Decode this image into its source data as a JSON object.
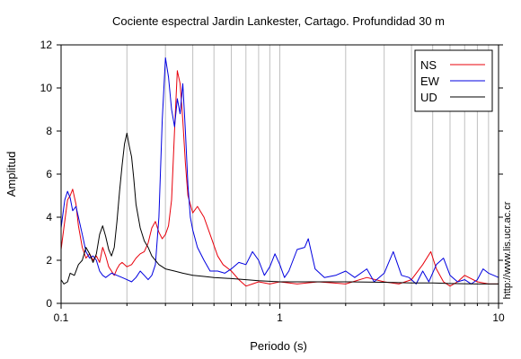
{
  "chart_data": {
    "type": "line",
    "title": "Cociente espectral Jardin Lankester, Cartago. Profundidad 30 m",
    "xlabel": "Periodo (s)",
    "ylabel": "Amplitud",
    "xscale": "log",
    "xlim": [
      0.1,
      10
    ],
    "ylim": [
      0,
      12
    ],
    "xticks": [
      {
        "value": 0.1,
        "label": "0.1"
      },
      {
        "value": 1,
        "label": "1"
      },
      {
        "value": 10,
        "label": "10"
      }
    ],
    "yticks": [
      0,
      2,
      4,
      6,
      8,
      10,
      12
    ],
    "grid": "vertical log-decade lines",
    "legend_position": "top-right",
    "series": [
      {
        "name": "NS",
        "color": "#e8000b",
        "points": [
          [
            0.1,
            2.5
          ],
          [
            0.103,
            3.5
          ],
          [
            0.107,
            4.8
          ],
          [
            0.11,
            5.0
          ],
          [
            0.113,
            5.3
          ],
          [
            0.117,
            4.6
          ],
          [
            0.12,
            3.6
          ],
          [
            0.125,
            2.6
          ],
          [
            0.13,
            2.1
          ],
          [
            0.135,
            2.3
          ],
          [
            0.14,
            2.0
          ],
          [
            0.145,
            2.2
          ],
          [
            0.15,
            1.9
          ],
          [
            0.155,
            2.6
          ],
          [
            0.16,
            2.2
          ],
          [
            0.165,
            1.7
          ],
          [
            0.17,
            1.5
          ],
          [
            0.175,
            1.3
          ],
          [
            0.18,
            1.6
          ],
          [
            0.185,
            1.8
          ],
          [
            0.19,
            1.9
          ],
          [
            0.2,
            1.7
          ],
          [
            0.21,
            1.8
          ],
          [
            0.22,
            2.1
          ],
          [
            0.23,
            2.3
          ],
          [
            0.24,
            2.4
          ],
          [
            0.25,
            2.8
          ],
          [
            0.26,
            3.5
          ],
          [
            0.27,
            3.8
          ],
          [
            0.28,
            3.3
          ],
          [
            0.29,
            3.0
          ],
          [
            0.3,
            3.2
          ],
          [
            0.31,
            3.6
          ],
          [
            0.32,
            4.8
          ],
          [
            0.33,
            8.0
          ],
          [
            0.34,
            10.8
          ],
          [
            0.35,
            10.2
          ],
          [
            0.36,
            8.5
          ],
          [
            0.37,
            6.5
          ],
          [
            0.38,
            5.0
          ],
          [
            0.4,
            4.2
          ],
          [
            0.42,
            4.5
          ],
          [
            0.45,
            4.0
          ],
          [
            0.48,
            3.2
          ],
          [
            0.52,
            2.2
          ],
          [
            0.55,
            1.8
          ],
          [
            0.6,
            1.5
          ],
          [
            0.65,
            1.1
          ],
          [
            0.7,
            0.8
          ],
          [
            0.75,
            0.9
          ],
          [
            0.8,
            1.0
          ],
          [
            0.9,
            0.9
          ],
          [
            1.0,
            1.0
          ],
          [
            1.2,
            0.9
          ],
          [
            1.5,
            1.0
          ],
          [
            2.0,
            0.9
          ],
          [
            2.5,
            1.2
          ],
          [
            3.0,
            1.0
          ],
          [
            3.5,
            0.9
          ],
          [
            4.0,
            1.1
          ],
          [
            4.5,
            1.8
          ],
          [
            4.9,
            2.4
          ],
          [
            5.2,
            1.6
          ],
          [
            5.6,
            1.0
          ],
          [
            6.0,
            0.8
          ],
          [
            6.5,
            1.0
          ],
          [
            7.0,
            1.3
          ],
          [
            8.0,
            1.0
          ],
          [
            9.0,
            0.9
          ],
          [
            10.0,
            0.9
          ]
        ]
      },
      {
        "name": "EW",
        "color": "#0000e0",
        "points": [
          [
            0.1,
            3.5
          ],
          [
            0.104,
            4.8
          ],
          [
            0.107,
            5.2
          ],
          [
            0.11,
            4.9
          ],
          [
            0.113,
            4.3
          ],
          [
            0.117,
            4.5
          ],
          [
            0.12,
            4.0
          ],
          [
            0.125,
            3.2
          ],
          [
            0.13,
            2.4
          ],
          [
            0.135,
            2.1
          ],
          [
            0.14,
            2.2
          ],
          [
            0.145,
            2.0
          ],
          [
            0.15,
            1.5
          ],
          [
            0.155,
            1.3
          ],
          [
            0.16,
            1.2
          ],
          [
            0.17,
            1.4
          ],
          [
            0.18,
            1.3
          ],
          [
            0.19,
            1.2
          ],
          [
            0.2,
            1.1
          ],
          [
            0.21,
            1.0
          ],
          [
            0.22,
            1.2
          ],
          [
            0.23,
            1.5
          ],
          [
            0.24,
            1.3
          ],
          [
            0.25,
            1.1
          ],
          [
            0.26,
            1.3
          ],
          [
            0.27,
            1.8
          ],
          [
            0.28,
            4.0
          ],
          [
            0.29,
            8.5
          ],
          [
            0.3,
            11.4
          ],
          [
            0.31,
            10.5
          ],
          [
            0.32,
            9.0
          ],
          [
            0.33,
            8.2
          ],
          [
            0.34,
            9.5
          ],
          [
            0.35,
            8.8
          ],
          [
            0.36,
            10.2
          ],
          [
            0.37,
            8.0
          ],
          [
            0.38,
            5.5
          ],
          [
            0.39,
            4.0
          ],
          [
            0.4,
            3.4
          ],
          [
            0.42,
            2.6
          ],
          [
            0.45,
            2.0
          ],
          [
            0.48,
            1.5
          ],
          [
            0.52,
            1.5
          ],
          [
            0.56,
            1.4
          ],
          [
            0.6,
            1.6
          ],
          [
            0.65,
            1.9
          ],
          [
            0.7,
            1.8
          ],
          [
            0.75,
            2.4
          ],
          [
            0.8,
            2.0
          ],
          [
            0.85,
            1.3
          ],
          [
            0.9,
            1.7
          ],
          [
            0.95,
            2.3
          ],
          [
            1.0,
            1.8
          ],
          [
            1.05,
            1.2
          ],
          [
            1.1,
            1.5
          ],
          [
            1.2,
            2.5
          ],
          [
            1.3,
            2.6
          ],
          [
            1.35,
            3.0
          ],
          [
            1.45,
            1.6
          ],
          [
            1.6,
            1.2
          ],
          [
            1.8,
            1.3
          ],
          [
            2.0,
            1.5
          ],
          [
            2.2,
            1.2
          ],
          [
            2.5,
            1.6
          ],
          [
            2.7,
            1.0
          ],
          [
            3.0,
            1.4
          ],
          [
            3.3,
            2.4
          ],
          [
            3.6,
            1.3
          ],
          [
            3.9,
            1.2
          ],
          [
            4.2,
            0.9
          ],
          [
            4.5,
            1.5
          ],
          [
            4.8,
            1.0
          ],
          [
            5.2,
            1.8
          ],
          [
            5.6,
            2.1
          ],
          [
            6.0,
            1.3
          ],
          [
            6.5,
            1.0
          ],
          [
            7.0,
            1.1
          ],
          [
            7.5,
            0.9
          ],
          [
            8.0,
            1.1
          ],
          [
            8.5,
            1.6
          ],
          [
            9.0,
            1.4
          ],
          [
            9.5,
            1.3
          ],
          [
            10.0,
            1.2
          ]
        ]
      },
      {
        "name": "UD",
        "color": "#000000",
        "points": [
          [
            0.1,
            1.1
          ],
          [
            0.103,
            0.9
          ],
          [
            0.107,
            1.0
          ],
          [
            0.11,
            1.4
          ],
          [
            0.115,
            1.3
          ],
          [
            0.12,
            1.8
          ],
          [
            0.125,
            2.0
          ],
          [
            0.13,
            2.6
          ],
          [
            0.135,
            2.3
          ],
          [
            0.14,
            1.9
          ],
          [
            0.145,
            2.3
          ],
          [
            0.15,
            3.2
          ],
          [
            0.155,
            3.6
          ],
          [
            0.16,
            3.1
          ],
          [
            0.165,
            2.5
          ],
          [
            0.17,
            2.2
          ],
          [
            0.175,
            2.6
          ],
          [
            0.18,
            3.8
          ],
          [
            0.185,
            5.2
          ],
          [
            0.19,
            6.4
          ],
          [
            0.195,
            7.4
          ],
          [
            0.2,
            7.9
          ],
          [
            0.205,
            7.3
          ],
          [
            0.21,
            6.8
          ],
          [
            0.215,
            5.8
          ],
          [
            0.22,
            4.6
          ],
          [
            0.23,
            3.5
          ],
          [
            0.24,
            2.9
          ],
          [
            0.25,
            2.6
          ],
          [
            0.26,
            2.2
          ],
          [
            0.28,
            1.8
          ],
          [
            0.3,
            1.6
          ],
          [
            0.33,
            1.5
          ],
          [
            0.36,
            1.4
          ],
          [
            0.4,
            1.3
          ],
          [
            0.45,
            1.25
          ],
          [
            0.5,
            1.2
          ],
          [
            0.6,
            1.15
          ],
          [
            0.7,
            1.1
          ],
          [
            0.8,
            1.05
          ],
          [
            1.0,
            1.0
          ],
          [
            1.3,
            1.0
          ],
          [
            1.7,
            1.0
          ],
          [
            2.0,
            1.0
          ],
          [
            3.0,
            0.98
          ],
          [
            4.0,
            0.95
          ],
          [
            5.0,
            0.95
          ],
          [
            6.0,
            0.92
          ],
          [
            8.0,
            0.9
          ],
          [
            10.0,
            0.9
          ]
        ]
      }
    ]
  },
  "watermark": "http://www.lis.ucr.ac.cr"
}
